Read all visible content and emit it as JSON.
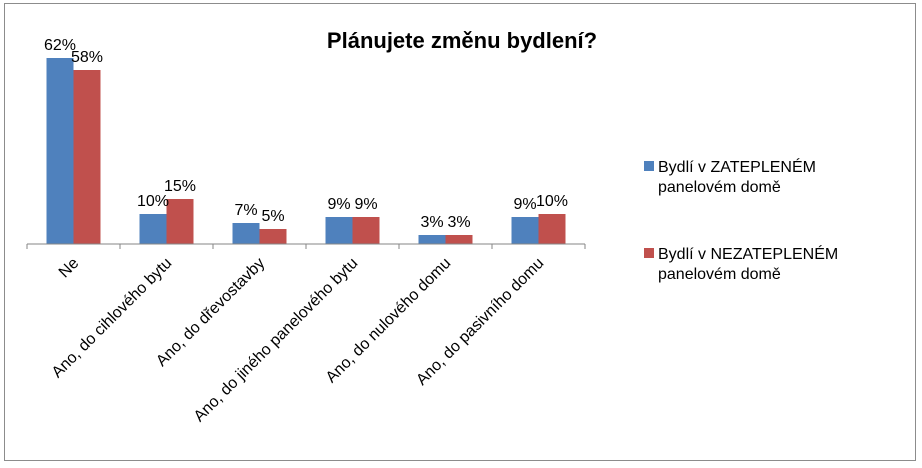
{
  "chart_data": {
    "type": "bar",
    "title": "Plánujete změnu bydlení?",
    "xlabel": "",
    "ylabel": "",
    "categories": [
      "Ne",
      "Ano, do cihlového bytu",
      "Ano, do dřevostavby",
      "Ano, do jiného panelového bytu",
      "Ano, do nulového domu",
      "Ano, do pasivního domu"
    ],
    "series": [
      {
        "name_lines": [
          "Bydlí v ZATEPLENÉM",
          "panelovém domě"
        ],
        "color": "#4f81bd",
        "values": [
          62,
          10,
          7,
          9,
          3,
          9
        ],
        "labels": [
          "62%",
          "10%",
          "7%",
          "9%",
          "3%",
          "9%"
        ]
      },
      {
        "name_lines": [
          "Bydlí v NEZATEPLENÉM",
          "panelovém domě"
        ],
        "color": "#c0504d",
        "values": [
          58,
          15,
          5,
          9,
          3,
          10
        ],
        "labels": [
          "58%",
          "15%",
          "5%",
          "9%",
          "3%",
          "10%"
        ]
      }
    ],
    "ylim": [
      0,
      62
    ],
    "grid": false,
    "legend_position": "right"
  }
}
